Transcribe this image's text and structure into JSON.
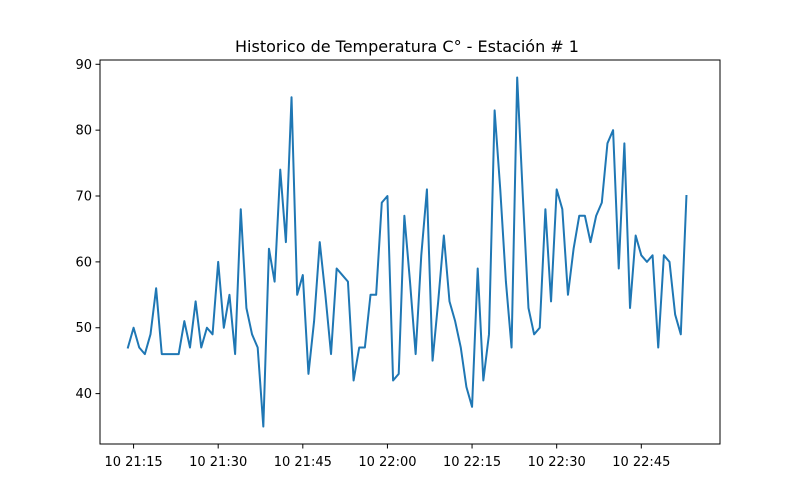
{
  "chart_data": {
    "type": "line",
    "title": "Historico de Temperatura C° - Estación # 1",
    "xlabel": "",
    "ylabel": "",
    "x_start": "10 21:14",
    "x_step_minutes": 1,
    "x_ticks": [
      {
        "label": "10 21:15",
        "minute": 1
      },
      {
        "label": "10 21:30",
        "minute": 16
      },
      {
        "label": "10 21:45",
        "minute": 31
      },
      {
        "label": "10 22:00",
        "minute": 46
      },
      {
        "label": "10 22:15",
        "minute": 61
      },
      {
        "label": "10 22:30",
        "minute": 76
      },
      {
        "label": "10 22:45",
        "minute": 91
      }
    ],
    "y_ticks": [
      40,
      50,
      60,
      70,
      80,
      90
    ],
    "ylim": [
      32.35,
      90.65
    ],
    "xlim_minutes": [
      -4.95,
      104.95
    ],
    "series": [
      {
        "color": "#1f77b4",
        "values": [
          47,
          50,
          47,
          46,
          49,
          56,
          46,
          46,
          46,
          46,
          51,
          47,
          54,
          47,
          50,
          49,
          60,
          50,
          55,
          46,
          68,
          53,
          49,
          47,
          35,
          62,
          57,
          74,
          63,
          85,
          55,
          58,
          43,
          51,
          63,
          55,
          46,
          59,
          58,
          57,
          42,
          47,
          47,
          55,
          55,
          69,
          70,
          42,
          43,
          67,
          57,
          46,
          61,
          71,
          45,
          54,
          64,
          54,
          51,
          47,
          41,
          38,
          59,
          42,
          49,
          83,
          71,
          57,
          47,
          88,
          70,
          53,
          49,
          50,
          68,
          54,
          71,
          68,
          55,
          62,
          67,
          67,
          63,
          67,
          69,
          78,
          80,
          59,
          78,
          53,
          64,
          61,
          60,
          61,
          47,
          61,
          60,
          52,
          49,
          70
        ]
      }
    ],
    "grid": false,
    "legend": "none"
  }
}
